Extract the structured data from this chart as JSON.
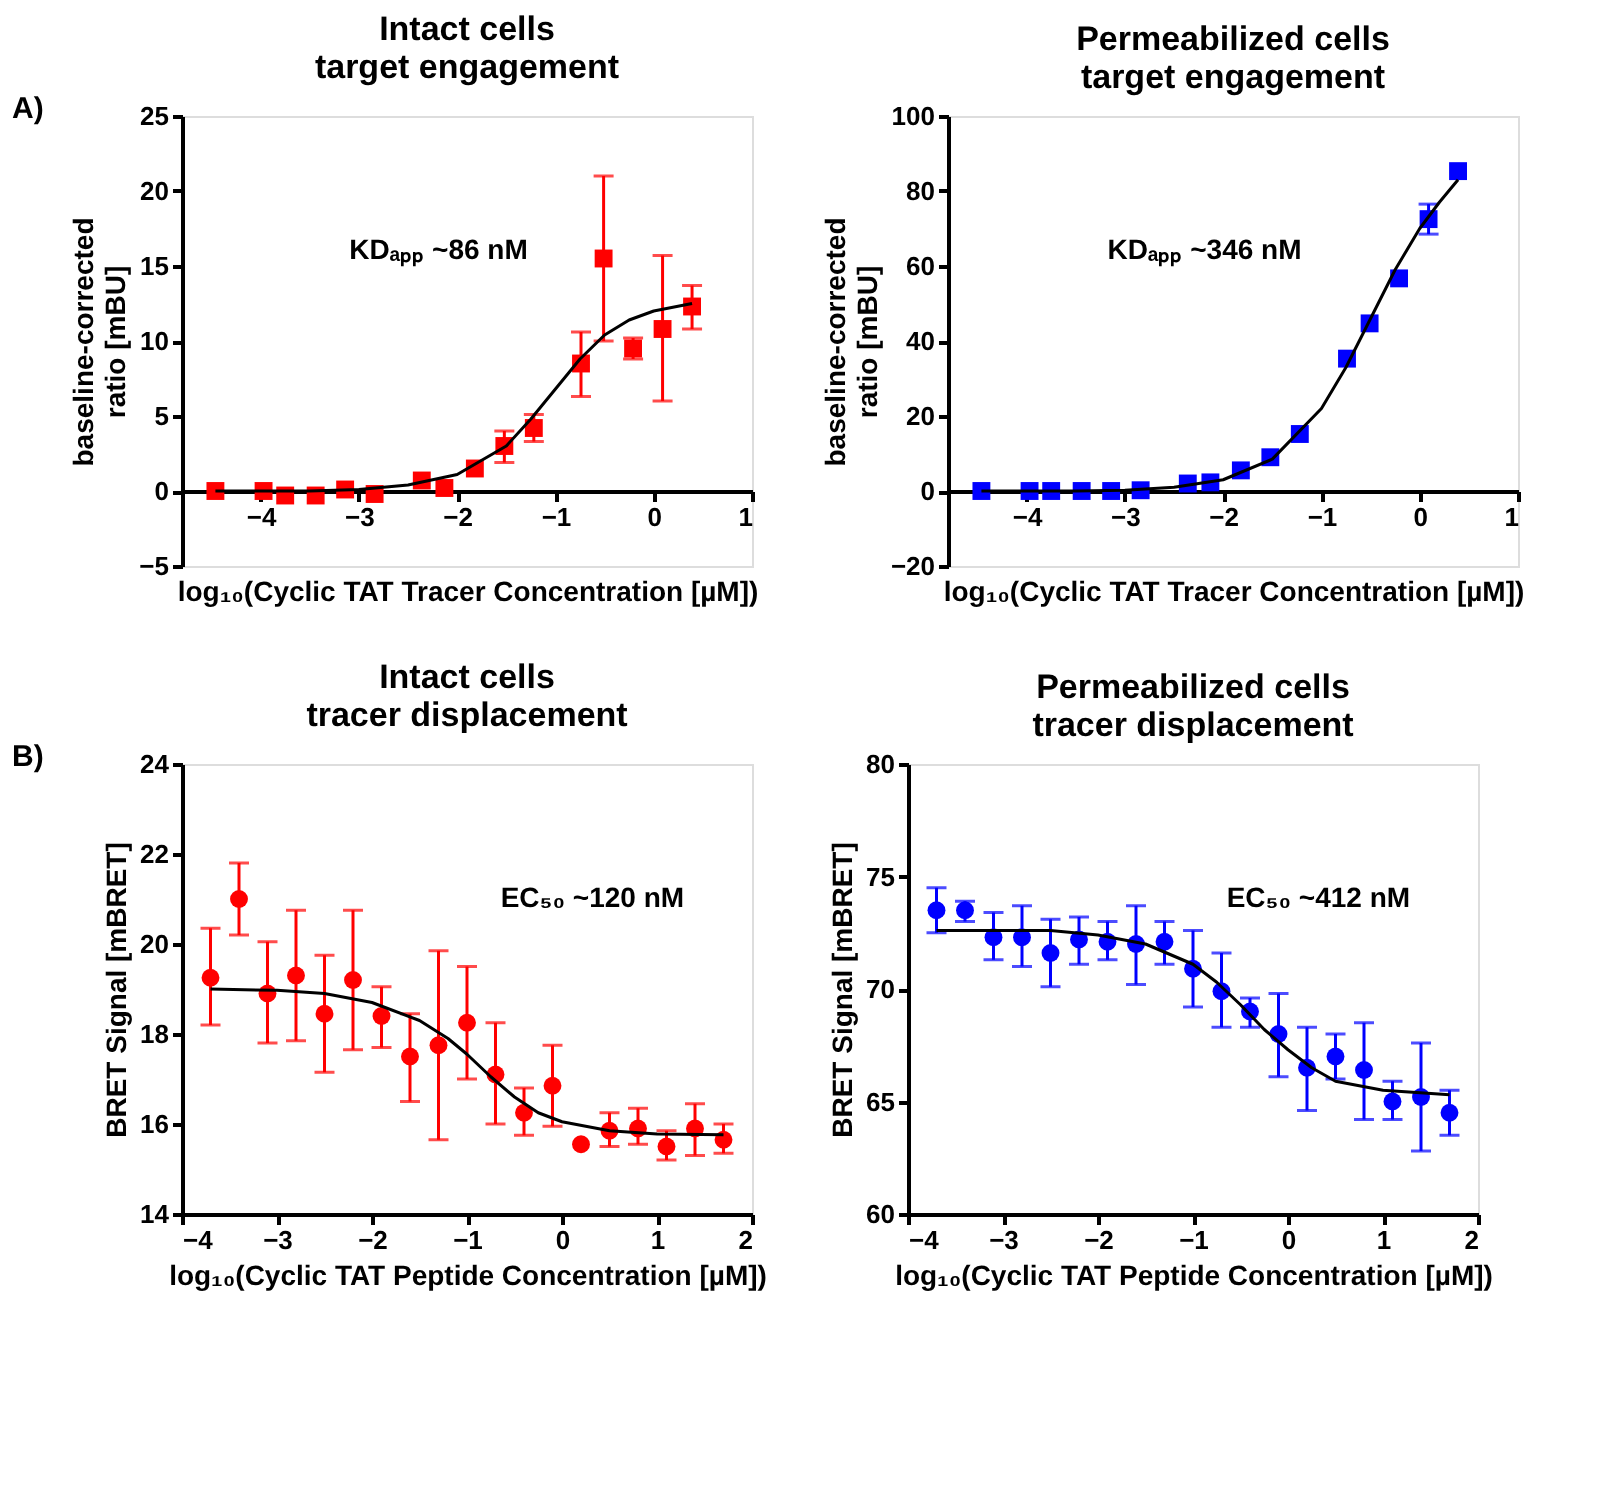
{
  "chart_data": [
    {
      "type": "scatter",
      "title": "Intact cells\ntarget engagement",
      "xlabel": "log₁₀(Cyclic TAT Tracer Concentration [µM])",
      "ylabel": "baseline-corrected\nratio [mBU]",
      "xlim": [
        -4.8,
        1
      ],
      "ylim": [
        -5,
        25
      ],
      "xticks": [
        -4,
        -3,
        -2,
        -1,
        0,
        1
      ],
      "yticks": [
        -5,
        0,
        5,
        10,
        15,
        20,
        25
      ],
      "marker": "square",
      "annotations": [
        "A)",
        "KDₐₚₚ ~86 nM"
      ],
      "series": [
        {
          "color": "#ff0000",
          "x": [
            -4.46,
            -3.97,
            -3.75,
            -3.44,
            -3.14,
            -2.84,
            -2.36,
            -2.13,
            -1.82,
            -1.52,
            -1.22,
            -0.74,
            -0.51,
            -0.21,
            0.09,
            0.39
          ],
          "values": [
            0,
            0,
            -0.3,
            -0.3,
            0.1,
            -0.2,
            0.7,
            0.2,
            1.5,
            3.0,
            4.2,
            8.5,
            15.5,
            9.5,
            10.8,
            12.3
          ],
          "errors": [
            null,
            null,
            null,
            null,
            null,
            null,
            null,
            null,
            null,
            [
              1.9,
              4.0
            ],
            [
              3.3,
              5.1
            ],
            [
              6.3,
              10.6
            ],
            [
              10.0,
              21.0
            ],
            [
              8.8,
              10.2
            ],
            [
              6.0,
              15.7
            ],
            [
              10.8,
              13.7
            ]
          ]
        },
        {
          "type": "line",
          "color": "#000000",
          "marker": "none",
          "line_style": "solid",
          "x": [
            -4.46,
            -3.5,
            -3,
            -2.5,
            -2,
            -1.5,
            -1.25,
            -1,
            -0.75,
            -0.5,
            -0.25,
            0,
            0.39
          ],
          "values": [
            0,
            0,
            0.1,
            0.4,
            1.1,
            3.0,
            4.8,
            6.8,
            8.8,
            10.4,
            11.4,
            12.0,
            12.5
          ]
        }
      ]
    },
    {
      "type": "scatter",
      "title": "Permeabilized cells\ntarget engagement",
      "xlabel": "log₁₀(Cyclic TAT Tracer Concentration [µM])",
      "ylabel": "baseline-corrected\nratio [mBU]",
      "xlim": [
        -4.8,
        1
      ],
      "ylim": [
        -20,
        100
      ],
      "xticks": [
        -4,
        -3,
        -2,
        -1,
        0,
        1
      ],
      "yticks": [
        -20,
        0,
        20,
        40,
        60,
        80,
        100
      ],
      "marker": "square",
      "annotations": [
        "KDₐₚₚ ~346 nM"
      ],
      "series": [
        {
          "color": "#0000ff",
          "x": [
            -4.46,
            -3.97,
            -3.75,
            -3.44,
            -3.14,
            -2.84,
            -2.36,
            -2.13,
            -1.82,
            -1.52,
            -1.22,
            -0.74,
            -0.51,
            -0.21,
            0.09,
            0.39
          ],
          "values": [
            0,
            0,
            0,
            0,
            0,
            0.2,
            2.0,
            2.3,
            5.5,
            9.0,
            15.2,
            35.3,
            44.7,
            56.7,
            72.5,
            85.3
          ],
          "errors": [
            null,
            null,
            null,
            null,
            null,
            null,
            null,
            null,
            null,
            null,
            null,
            null,
            null,
            null,
            [
              68.5,
              76.5
            ],
            null
          ]
        },
        {
          "type": "line",
          "color": "#000000",
          "marker": "none",
          "line_style": "solid",
          "x": [
            -4.46,
            -3.5,
            -3,
            -2.5,
            -2,
            -1.5,
            -1,
            -0.75,
            -0.5,
            -0.25,
            0,
            0.2,
            0.39
          ],
          "values": [
            0,
            0,
            0.2,
            1,
            3,
            8.5,
            22,
            33,
            46,
            59,
            70,
            77,
            83
          ]
        }
      ]
    },
    {
      "type": "scatter",
      "title": "Intact cells\ntracer displacement",
      "xlabel": "log₁₀(Cyclic TAT Peptide Concentration [µM])",
      "ylabel": "BRET Signal [mBRET]",
      "xlim": [
        -4,
        2
      ],
      "ylim": [
        14,
        24
      ],
      "xticks": [
        -4,
        -3,
        -2,
        -1,
        0,
        1,
        2
      ],
      "yticks": [
        14,
        16,
        18,
        20,
        22,
        24
      ],
      "marker": "circle",
      "annotations": [
        "B)",
        "EC₅₀ ~120 nM"
      ],
      "series": [
        {
          "color": "#ff0000",
          "x": [
            -3.7,
            -3.4,
            -3.1,
            -2.8,
            -2.5,
            -2.2,
            -1.9,
            -1.6,
            -1.3,
            -1.0,
            -0.7,
            -0.4,
            -0.1,
            0.2,
            0.5,
            0.8,
            1.1,
            1.4,
            1.7
          ],
          "values": [
            19.25,
            21.0,
            18.9,
            19.3,
            18.45,
            19.2,
            18.4,
            17.5,
            17.75,
            18.25,
            17.1,
            16.25,
            16.85,
            15.55,
            15.85,
            15.9,
            15.5,
            15.9,
            15.65
          ],
          "errors": [
            [
              18.2,
              20.35
            ],
            [
              20.2,
              21.8
            ],
            [
              17.8,
              20.05
            ],
            [
              17.85,
              20.75
            ],
            [
              17.15,
              19.75
            ],
            [
              17.65,
              20.75
            ],
            [
              17.7,
              19.05
            ],
            [
              16.5,
              18.45
            ],
            [
              15.65,
              19.85
            ],
            [
              17.0,
              19.5
            ],
            [
              16.0,
              18.25
            ],
            [
              15.75,
              16.8
            ],
            [
              15.95,
              17.75
            ],
            null,
            [
              15.5,
              16.25
            ],
            [
              15.55,
              16.35
            ],
            [
              15.2,
              15.85
            ],
            [
              15.3,
              16.45
            ],
            [
              15.35,
              16.0
            ]
          ]
        },
        {
          "type": "line",
          "color": "#000000",
          "marker": "none",
          "line_style": "solid",
          "x": [
            -3.7,
            -3,
            -2.5,
            -2,
            -1.5,
            -1.2,
            -1,
            -0.75,
            -0.5,
            -0.25,
            0,
            0.5,
            1,
            1.7
          ],
          "values": [
            19.0,
            18.97,
            18.9,
            18.7,
            18.3,
            17.9,
            17.55,
            17.05,
            16.6,
            16.25,
            16.05,
            15.85,
            15.78,
            15.76
          ]
        }
      ]
    },
    {
      "type": "scatter",
      "title": "Permeabilized cells\ntracer displacement",
      "xlabel": "log₁₀(Cyclic TAT Peptide Concentration [µM])",
      "ylabel": "BRET Signal [mBRET]",
      "xlim": [
        -4,
        2
      ],
      "ylim": [
        60,
        80
      ],
      "xticks": [
        -4,
        -3,
        -2,
        -1,
        0,
        1,
        2
      ],
      "yticks": [
        60,
        65,
        70,
        75,
        80
      ],
      "marker": "circle",
      "annotations": [
        "EC₅₀ ~412 nM"
      ],
      "series": [
        {
          "color": "#0000ff",
          "x": [
            -3.7,
            -3.4,
            -3.1,
            -2.8,
            -2.5,
            -2.2,
            -1.9,
            -1.6,
            -1.3,
            -1.0,
            -0.7,
            -0.4,
            -0.1,
            0.2,
            0.5,
            0.8,
            1.1,
            1.4,
            1.7
          ],
          "values": [
            73.5,
            73.5,
            72.3,
            72.3,
            71.6,
            72.2,
            72.1,
            72.0,
            72.1,
            70.9,
            69.9,
            69.0,
            68.0,
            66.5,
            67.0,
            66.4,
            65.0,
            65.2,
            64.5
          ],
          "errors": [
            [
              72.5,
              74.5
            ],
            [
              73.0,
              73.9
            ],
            [
              71.3,
              73.4
            ],
            [
              71.0,
              73.7
            ],
            [
              70.1,
              73.1
            ],
            [
              71.1,
              73.2
            ],
            [
              71.3,
              73.0
            ],
            [
              70.2,
              73.7
            ],
            [
              71.1,
              73.0
            ],
            [
              69.2,
              72.6
            ],
            [
              68.3,
              71.6
            ],
            [
              68.3,
              69.6
            ],
            [
              66.1,
              69.8
            ],
            [
              64.6,
              68.3
            ],
            [
              66.0,
              68.0
            ],
            [
              64.2,
              68.5
            ],
            [
              64.2,
              65.9
            ],
            [
              62.8,
              67.6
            ],
            [
              63.5,
              65.5
            ]
          ]
        },
        {
          "type": "line",
          "color": "#000000",
          "marker": "none",
          "line_style": "solid",
          "x": [
            -3.7,
            -2.5,
            -2,
            -1.5,
            -1,
            -0.75,
            -0.5,
            -0.25,
            0,
            0.25,
            0.5,
            1,
            1.7
          ],
          "values": [
            72.6,
            72.6,
            72.4,
            72.0,
            71.1,
            70.3,
            69.3,
            68.2,
            67.3,
            66.5,
            65.9,
            65.5,
            65.3
          ]
        }
      ]
    }
  ]
}
